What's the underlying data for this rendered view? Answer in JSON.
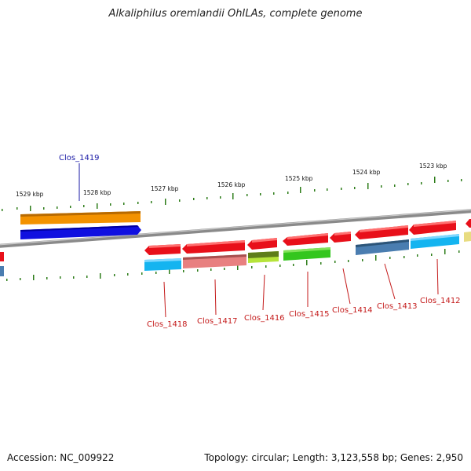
{
  "title": "Alkaliphilus oremlandii OhILAs, complete genome",
  "footer": {
    "accession": "Accession: NC_009922",
    "summary": "Topology: circular; Length: 3,123,558 bp; Genes: 2,950"
  },
  "kbp_labels": [
    "1529 kbp",
    "1528 kbp",
    "1527 kbp",
    "1526 kbp",
    "1525 kbp",
    "1524 kbp",
    "1523 kbp"
  ],
  "gene_labels": {
    "clos_1419": "Clos_1419",
    "clos_1418": "Clos_1418",
    "clos_1417": "Clos_1417",
    "clos_1416": "Clos_1416",
    "clos_1415": "Clos_1415",
    "clos_1414": "Clos_1414",
    "clos_1413": "Clos_1413",
    "clos_1412": "Clos_1412"
  },
  "colors": {
    "backbone": "#8a8a8a",
    "tick": "#2e7d1a",
    "label_blue": "#1a1aa6",
    "label_red": "#c41a1a"
  }
}
